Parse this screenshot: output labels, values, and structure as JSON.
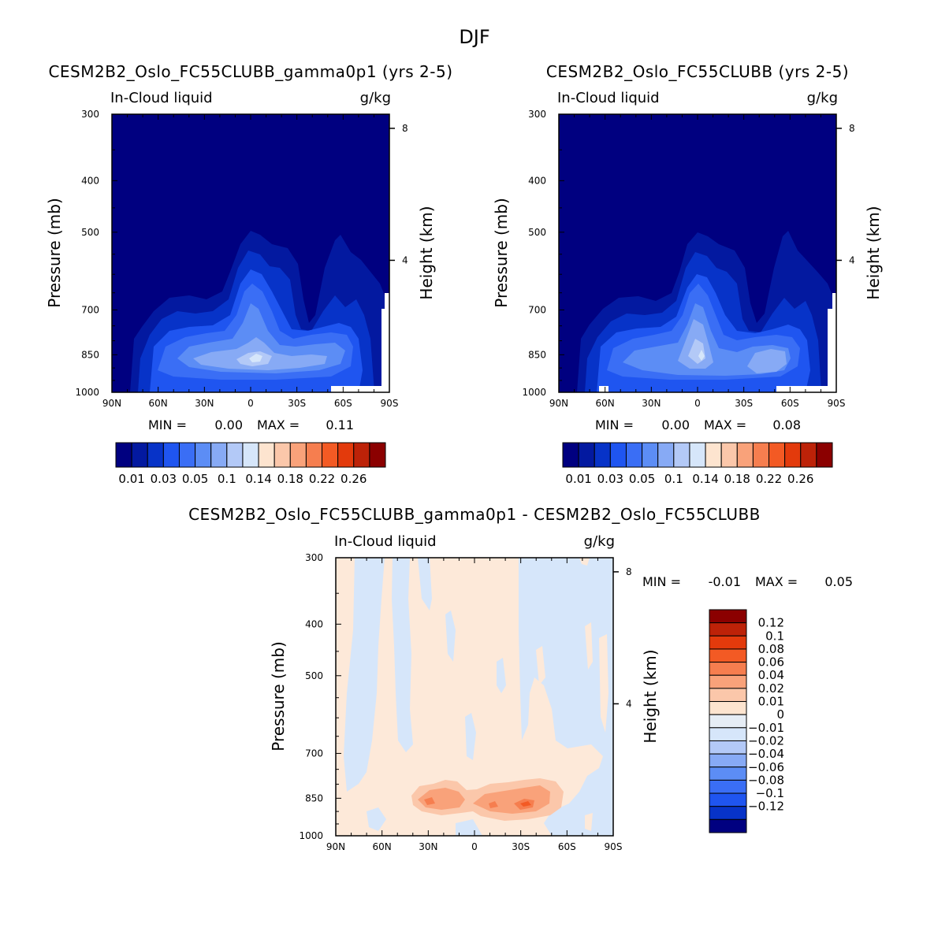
{
  "figure_title": "DJF",
  "colors": {
    "blues": [
      "#000080",
      "#0319a0",
      "#0733c8",
      "#1f55f0",
      "#3a6ef5",
      "#5c8df5",
      "#87aaf5",
      "#b3c9f7",
      "#d6e6fa"
    ],
    "reds": [
      "#fde4cf",
      "#fbc7aa",
      "#f9a27a",
      "#f67e4f",
      "#f35a24",
      "#e33a0c",
      "#bd2208",
      "#8b0000"
    ],
    "diff_scale": [
      "#8b0000",
      "#bd2208",
      "#e33a0c",
      "#f35a24",
      "#f67e4f",
      "#f9a27a",
      "#fbc7aa",
      "#fde4cf",
      "#e6edf5",
      "#d6e6fa",
      "#b3c9f7",
      "#87aaf5",
      "#5c8df5",
      "#3a6ef5",
      "#1f55f0",
      "#0733c8",
      "#000080"
    ]
  },
  "chart_data": [
    {
      "type": "heatmap",
      "title": "CESM2B2_Oslo_FC55CLUBB_gamma0p1 (yrs 2-5)",
      "subtitle_left": "In-Cloud liquid",
      "subtitle_right": "g/kg",
      "ylabel": "Pressure (mb)",
      "y2label": "Height (km)",
      "yticks": [
        "300",
        "400",
        "500",
        "700",
        "850",
        "1000"
      ],
      "yticks_values": [
        300,
        400,
        500,
        700,
        850,
        1000
      ],
      "y2ticks": [
        "8",
        "4"
      ],
      "y2ticks_values": [
        8,
        4
      ],
      "xticks": [
        "90N",
        "60N",
        "30N",
        "0",
        "30S",
        "60S",
        "90S"
      ],
      "xticks_values": [
        90,
        60,
        30,
        0,
        -30,
        -60,
        -90
      ],
      "min_label": "MIN =",
      "min_value": "0.00",
      "max_label": "MAX =",
      "max_value": "0.11",
      "colorbar_levels": [
        "0.01",
        "0.03",
        "0.05",
        "0.1",
        "0.14",
        "0.18",
        "0.22",
        "0.26"
      ]
    },
    {
      "type": "heatmap",
      "title": "CESM2B2_Oslo_FC55CLUBB (yrs 2-5)",
      "subtitle_left": "In-Cloud liquid",
      "subtitle_right": "g/kg",
      "ylabel": "Pressure (mb)",
      "y2label": "Height (km)",
      "yticks": [
        "300",
        "400",
        "500",
        "700",
        "850",
        "1000"
      ],
      "yticks_values": [
        300,
        400,
        500,
        700,
        850,
        1000
      ],
      "y2ticks": [
        "8",
        "4"
      ],
      "y2ticks_values": [
        8,
        4
      ],
      "xticks": [
        "90N",
        "60N",
        "30N",
        "0",
        "30S",
        "60S",
        "90S"
      ],
      "xticks_values": [
        90,
        60,
        30,
        0,
        -30,
        -60,
        -90
      ],
      "min_label": "MIN =",
      "min_value": "0.00",
      "max_label": "MAX =",
      "max_value": "0.08",
      "colorbar_levels": [
        "0.01",
        "0.03",
        "0.05",
        "0.1",
        "0.14",
        "0.18",
        "0.22",
        "0.26"
      ]
    },
    {
      "type": "heatmap",
      "title": "CESM2B2_Oslo_FC55CLUBB_gamma0p1 - CESM2B2_Oslo_FC55CLUBB",
      "subtitle_left": "In-Cloud liquid",
      "subtitle_right": "g/kg",
      "ylabel": "Pressure (mb)",
      "y2label": "Height (km)",
      "yticks": [
        "300",
        "400",
        "500",
        "700",
        "850",
        "1000"
      ],
      "yticks_values": [
        300,
        400,
        500,
        700,
        850,
        1000
      ],
      "y2ticks": [
        "8",
        "4"
      ],
      "y2ticks_values": [
        8,
        4
      ],
      "xticks": [
        "90N",
        "60N",
        "30N",
        "0",
        "30S",
        "60S",
        "90S"
      ],
      "xticks_values": [
        90,
        60,
        30,
        0,
        -30,
        -60,
        -90
      ],
      "min_label": "MIN =",
      "min_value": "-0.01",
      "max_label": "MAX =",
      "max_value": "0.05",
      "colorbar_levels": [
        "0.12",
        "0.1",
        "0.08",
        "0.06",
        "0.04",
        "0.02",
        "0.01",
        "0",
        "-0.01",
        "-0.02",
        "-0.04",
        "-0.06",
        "-0.08",
        "-0.1",
        "-0.12"
      ]
    }
  ]
}
